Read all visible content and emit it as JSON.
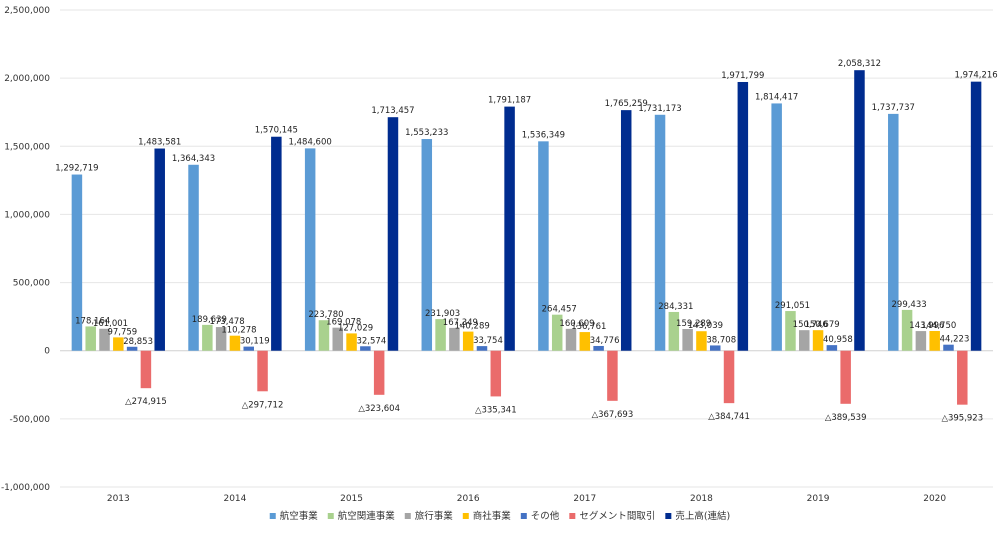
{
  "chart_data": {
    "type": "bar",
    "categories": [
      "2013",
      "2014",
      "2015",
      "2016",
      "2017",
      "2018",
      "2019",
      "2020"
    ],
    "ylim": [
      -1000000,
      2500000
    ],
    "yticks": [
      -1000000,
      -500000,
      0,
      500000,
      1000000,
      1500000,
      2000000,
      2500000
    ],
    "ytick_labels": [
      "-1,000,000",
      "-500,000",
      "0",
      "500,000",
      "1,000,000",
      "1,500,000",
      "2,000,000",
      "2,500,000"
    ],
    "grid": true,
    "legend_position": "bottom",
    "series": [
      {
        "name": "航空事業",
        "color": "#5B9BD5",
        "values": [
          1292719,
          1364343,
          1484600,
          1553233,
          1536349,
          1731173,
          1814417,
          1737737
        ],
        "labels": [
          "1,292,719",
          "1,364,343",
          "1,484,600",
          "1,553,233",
          "1,536,349",
          "1,731,173",
          "1,814,417",
          "1,737,737"
        ]
      },
      {
        "name": "航空関連事業",
        "color": "#A9D18E",
        "values": [
          178164,
          189639,
          223780,
          231903,
          264457,
          284331,
          291051,
          299433
        ],
        "labels": [
          "178,164",
          "189,639",
          "223,780",
          "231,903",
          "264,457",
          "284,331",
          "291,051",
          "299,433"
        ]
      },
      {
        "name": "旅行事業",
        "color": "#A5A5A5",
        "values": [
          161001,
          173478,
          169078,
          167349,
          160609,
          159289,
          150746,
          143996
        ],
        "labels": [
          "161,001",
          "173,478",
          "169,078",
          "167,349",
          "160,609",
          "159,289",
          "150,746",
          "143,996"
        ]
      },
      {
        "name": "商社事業",
        "color": "#FFC000",
        "values": [
          97759,
          110278,
          127029,
          140289,
          136761,
          143039,
          150679,
          144750
        ],
        "labels": [
          "97,759",
          "110,278",
          "127,029",
          "140,289",
          "136,761",
          "143,039",
          "150,679",
          "144,750"
        ]
      },
      {
        "name": "その他",
        "color": "#4472C4",
        "values": [
          28853,
          30119,
          32574,
          33754,
          34776,
          38708,
          40958,
          44223
        ],
        "labels": [
          "28,853",
          "30,119",
          "32,574",
          "33,754",
          "34,776",
          "38,708",
          "40,958",
          "44,223"
        ]
      },
      {
        "name": "セグメント間取引",
        "color": "#EA6B6B",
        "values": [
          -274915,
          -297712,
          -323604,
          -335341,
          -367693,
          -384741,
          -389539,
          -395923
        ],
        "labels": [
          "△274,915",
          "△297,712",
          "△323,604",
          "△335,341",
          "△367,693",
          "△384,741",
          "△389,539",
          "△395,923"
        ]
      },
      {
        "name": "売上高(連結)",
        "color": "#002C8F",
        "values": [
          1483581,
          1570145,
          1713457,
          1791187,
          1765259,
          1971799,
          2058312,
          1974216
        ],
        "labels": [
          "1,483,581",
          "1,570,145",
          "1,713,457",
          "1,791,187",
          "1,765,259",
          "1,971,799",
          "2,058,312",
          "1,974,216"
        ]
      }
    ]
  }
}
